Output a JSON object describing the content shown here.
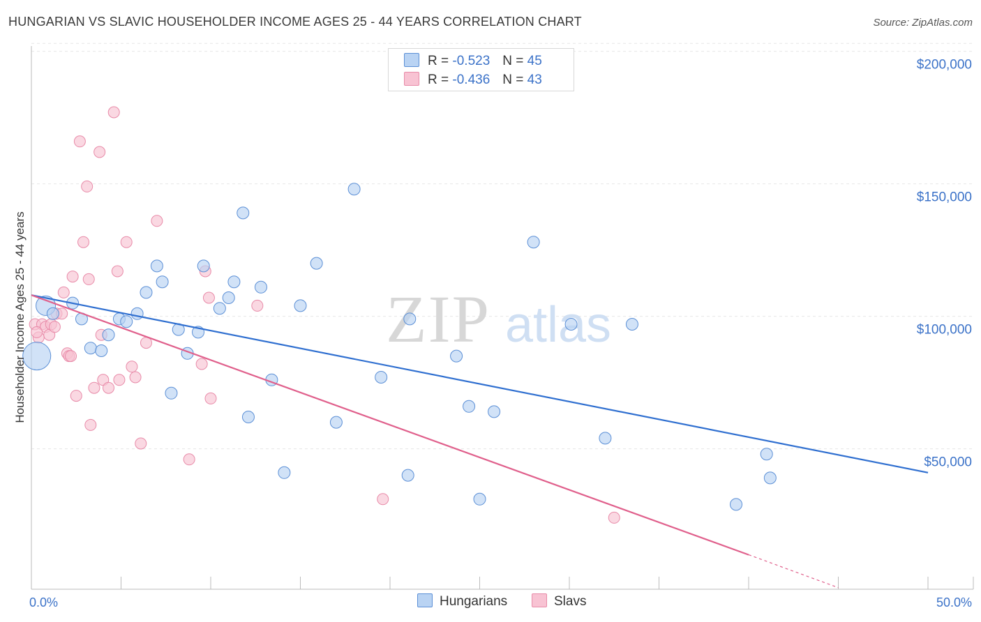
{
  "header": {
    "title": "HUNGARIAN VS SLAVIC HOUSEHOLDER INCOME AGES 25 - 44 YEARS CORRELATION CHART",
    "source": "Source: ZipAtlas.com"
  },
  "legend": {
    "rows": [
      {
        "r_label": "R =",
        "r_value": "-0.523",
        "n_label": "N =",
        "n_value": "45"
      },
      {
        "r_label": "R =",
        "r_value": "-0.436",
        "n_label": "N =",
        "n_value": "43"
      }
    ],
    "bottom": [
      "Hungarians",
      "Slavs"
    ]
  },
  "watermark": {
    "zip": "ZIP",
    "atlas": "atlas"
  },
  "colors": {
    "hungarians_fill": "#b9d3f3",
    "hungarians_stroke": "#5b8fd6",
    "hungarians_line": "#2f6fd0",
    "slavs_fill": "#f8c3d3",
    "slavs_stroke": "#e88aa8",
    "slavs_line": "#e0608c",
    "accent_text": "#3b72c8",
    "grid": "#e6e6e6"
  },
  "chart_data": {
    "type": "scatter",
    "title": "HUNGARIAN VS SLAVIC HOUSEHOLDER INCOME AGES 25 - 44 YEARS CORRELATION CHART",
    "xlabel": "",
    "ylabel": "Householder Income Ages 25 - 44 years",
    "xlim": [
      0,
      50
    ],
    "ylim": [
      0,
      205000
    ],
    "x_tick_labels": [
      "0.0%",
      "50.0%"
    ],
    "y_ticks": [
      50000,
      100000,
      150000,
      200000
    ],
    "y_tick_labels": [
      "$50,000",
      "$100,000",
      "$150,000",
      "$200,000"
    ],
    "grid": true,
    "series": [
      {
        "name": "Hungarians",
        "r": -0.523,
        "n": 45,
        "trend": {
          "x": [
            0,
            50
          ],
          "y": [
            111000,
            44000
          ]
        },
        "points": [
          {
            "x": 0.3,
            "y": 88000,
            "big": true
          },
          {
            "x": 0.8,
            "y": 107000,
            "big": true
          },
          {
            "x": 1.2,
            "y": 104000
          },
          {
            "x": 2.3,
            "y": 108000
          },
          {
            "x": 2.8,
            "y": 102000
          },
          {
            "x": 3.3,
            "y": 91000
          },
          {
            "x": 3.9,
            "y": 90000
          },
          {
            "x": 4.3,
            "y": 96000
          },
          {
            "x": 4.9,
            "y": 102000
          },
          {
            "x": 5.3,
            "y": 101000
          },
          {
            "x": 5.9,
            "y": 104000
          },
          {
            "x": 6.4,
            "y": 112000
          },
          {
            "x": 7.0,
            "y": 122000
          },
          {
            "x": 7.3,
            "y": 116000
          },
          {
            "x": 7.8,
            "y": 74000
          },
          {
            "x": 8.2,
            "y": 98000
          },
          {
            "x": 8.7,
            "y": 89000
          },
          {
            "x": 9.3,
            "y": 97000
          },
          {
            "x": 9.6,
            "y": 122000
          },
          {
            "x": 10.5,
            "y": 106000
          },
          {
            "x": 11.0,
            "y": 110000
          },
          {
            "x": 11.3,
            "y": 116000
          },
          {
            "x": 11.8,
            "y": 142000
          },
          {
            "x": 12.1,
            "y": 65000
          },
          {
            "x": 12.8,
            "y": 114000
          },
          {
            "x": 13.4,
            "y": 79000
          },
          {
            "x": 14.1,
            "y": 44000
          },
          {
            "x": 15.0,
            "y": 107000
          },
          {
            "x": 15.9,
            "y": 123000
          },
          {
            "x": 17.0,
            "y": 63000
          },
          {
            "x": 18.0,
            "y": 151000
          },
          {
            "x": 19.5,
            "y": 80000
          },
          {
            "x": 21.0,
            "y": 43000
          },
          {
            "x": 21.1,
            "y": 102000
          },
          {
            "x": 23.7,
            "y": 88000
          },
          {
            "x": 24.4,
            "y": 69000
          },
          {
            "x": 25.0,
            "y": 34000
          },
          {
            "x": 25.8,
            "y": 67000
          },
          {
            "x": 28.0,
            "y": 131000
          },
          {
            "x": 30.1,
            "y": 100000
          },
          {
            "x": 32.0,
            "y": 57000
          },
          {
            "x": 39.3,
            "y": 32000
          },
          {
            "x": 41.0,
            "y": 51000
          },
          {
            "x": 41.2,
            "y": 42000
          },
          {
            "x": 33.5,
            "y": 100000
          }
        ]
      },
      {
        "name": "Slavs",
        "r": -0.436,
        "n": 43,
        "trend": {
          "x": [
            0,
            40
          ],
          "y": [
            111000,
            13000
          ]
        },
        "trend_dashed": {
          "x": [
            40,
            45
          ],
          "y": [
            13000,
            600
          ]
        },
        "points": [
          {
            "x": 0.2,
            "y": 100000
          },
          {
            "x": 0.4,
            "y": 95000
          },
          {
            "x": 0.6,
            "y": 100000
          },
          {
            "x": 0.8,
            "y": 99000
          },
          {
            "x": 1.0,
            "y": 96000
          },
          {
            "x": 1.1,
            "y": 100000
          },
          {
            "x": 1.3,
            "y": 99000
          },
          {
            "x": 1.4,
            "y": 104000
          },
          {
            "x": 1.7,
            "y": 104000
          },
          {
            "x": 1.8,
            "y": 112000
          },
          {
            "x": 2.0,
            "y": 89000
          },
          {
            "x": 2.1,
            "y": 88000
          },
          {
            "x": 2.2,
            "y": 88000
          },
          {
            "x": 2.3,
            "y": 118000
          },
          {
            "x": 2.5,
            "y": 73000
          },
          {
            "x": 2.7,
            "y": 169000
          },
          {
            "x": 2.9,
            "y": 131000
          },
          {
            "x": 3.1,
            "y": 152000
          },
          {
            "x": 3.2,
            "y": 117000
          },
          {
            "x": 3.3,
            "y": 62000
          },
          {
            "x": 3.5,
            "y": 76000
          },
          {
            "x": 3.8,
            "y": 165000
          },
          {
            "x": 3.9,
            "y": 96000
          },
          {
            "x": 4.0,
            "y": 79000
          },
          {
            "x": 4.3,
            "y": 76000
          },
          {
            "x": 4.6,
            "y": 180000
          },
          {
            "x": 4.8,
            "y": 120000
          },
          {
            "x": 4.9,
            "y": 79000
          },
          {
            "x": 5.3,
            "y": 131000
          },
          {
            "x": 5.6,
            "y": 84000
          },
          {
            "x": 5.8,
            "y": 80000
          },
          {
            "x": 6.1,
            "y": 55000
          },
          {
            "x": 6.4,
            "y": 93000
          },
          {
            "x": 7.0,
            "y": 139000
          },
          {
            "x": 8.8,
            "y": 49000
          },
          {
            "x": 9.5,
            "y": 85000
          },
          {
            "x": 9.7,
            "y": 120000
          },
          {
            "x": 9.9,
            "y": 110000
          },
          {
            "x": 10.0,
            "y": 72000
          },
          {
            "x": 12.6,
            "y": 107000
          },
          {
            "x": 19.6,
            "y": 34000
          },
          {
            "x": 32.5,
            "y": 27000
          },
          {
            "x": 0.3,
            "y": 97000
          }
        ]
      }
    ]
  }
}
